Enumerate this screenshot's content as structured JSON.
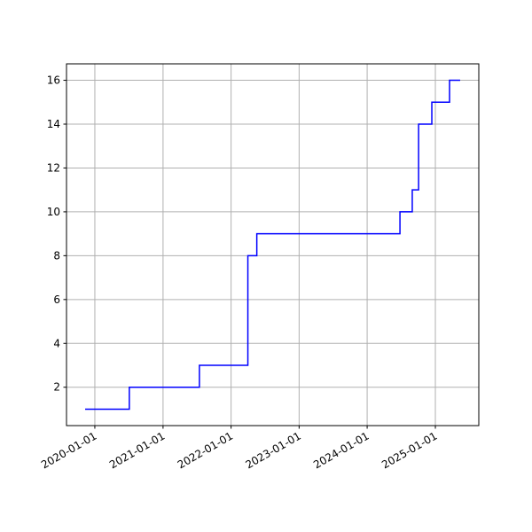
{
  "chart_data": {
    "type": "step",
    "x": [
      "2019-11-10",
      "2020-07-04",
      "2021-07-15",
      "2022-04-01",
      "2022-05-19",
      "2024-06-25",
      "2024-08-30",
      "2024-10-03",
      "2024-12-13",
      "2025-03-18",
      "2025-05-14"
    ],
    "values": [
      1,
      2,
      3,
      8,
      9,
      10,
      11,
      14,
      15,
      16,
      16
    ],
    "color": "#0000ff",
    "xlim": [
      "2019-08-02",
      "2025-08-22"
    ],
    "xticks": [
      "2020-01-01",
      "2021-01-01",
      "2022-01-01",
      "2023-01-01",
      "2024-01-01",
      "2025-01-01"
    ],
    "ylim": [
      0.25,
      16.75
    ],
    "yticks": [
      2,
      4,
      6,
      8,
      10,
      12,
      14,
      16
    ],
    "grid": true
  }
}
